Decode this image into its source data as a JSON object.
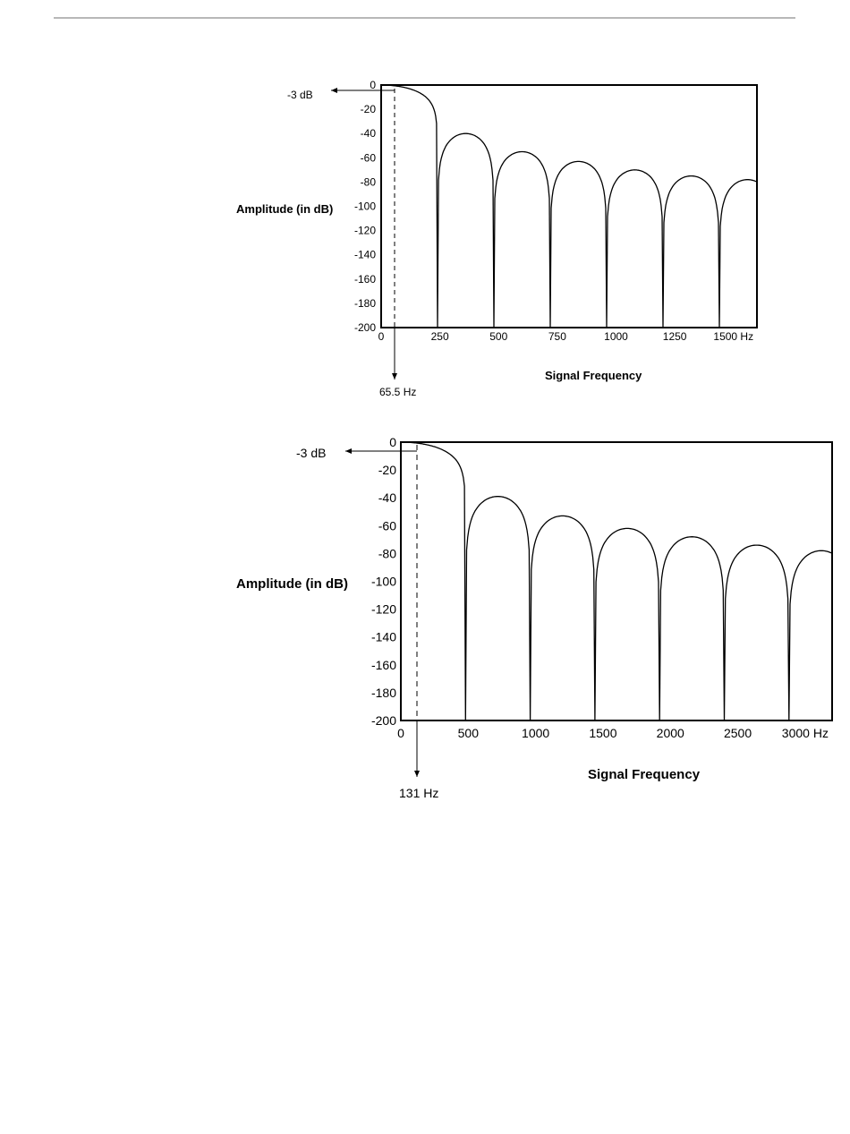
{
  "chart_data": [
    {
      "type": "line",
      "title": "",
      "xlabel": "Signal Frequency",
      "ylabel": "Amplitude (in dB)",
      "xlim": [
        0,
        1600
      ],
      "ylim": [
        -200,
        0
      ],
      "x_tick_labels": [
        "0",
        "250",
        "500",
        "750",
        "1000",
        "1250",
        "1500 Hz"
      ],
      "y_tick_labels": [
        "0",
        "-20",
        "-40",
        "-60",
        "-80",
        "-100",
        "-120",
        "-140",
        "-160",
        "-180",
        "-200"
      ],
      "first_notch_hz": 240,
      "lobe_peaks_db": [
        -40,
        -55,
        -63,
        -70,
        -75,
        -78
      ],
      "annotations": {
        "db_marker": "-3 dB",
        "cutoff": "65.5 Hz",
        "cutoff_hz": 65.5
      },
      "grid": false
    },
    {
      "type": "line",
      "title": "",
      "xlabel": "Signal Frequency",
      "ylabel": "Amplitude (in dB)",
      "xlim": [
        0,
        3200
      ],
      "ylim": [
        -200,
        0
      ],
      "x_tick_labels": [
        "0",
        "500",
        "1000",
        "1500",
        "2000",
        "2500",
        "3000 Hz"
      ],
      "y_tick_labels": [
        "0",
        "-20",
        "-40",
        "-60",
        "-80",
        "-100",
        "-120",
        "-140",
        "-160",
        "-180",
        "-200"
      ],
      "first_notch_hz": 480,
      "lobe_peaks_db": [
        -39,
        -53,
        -62,
        -68,
        -74,
        -78
      ],
      "annotations": {
        "db_marker": "-3 dB",
        "cutoff": "131 Hz",
        "cutoff_hz": 131
      },
      "grid": false
    }
  ]
}
